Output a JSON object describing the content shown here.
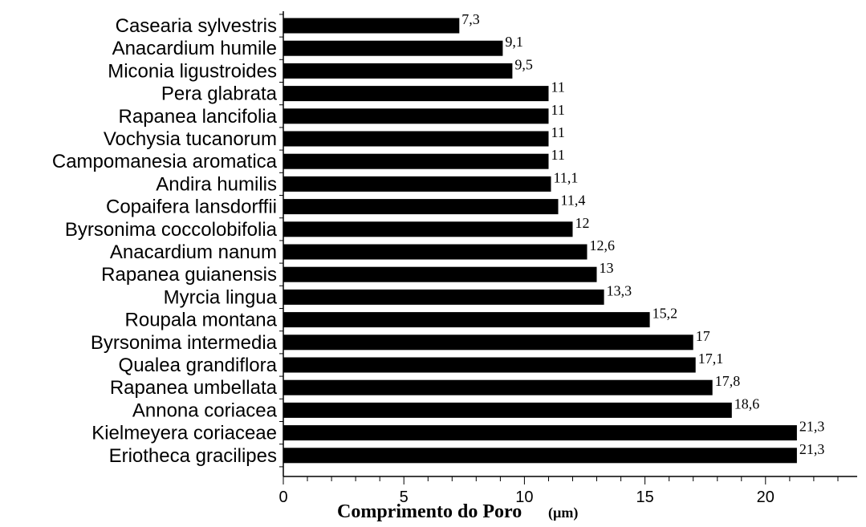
{
  "chart_data": {
    "type": "bar",
    "orientation": "horizontal",
    "categories": [
      "Casearia sylvestris",
      "Anacardium humile",
      "Miconia ligustroides",
      "Pera glabrata",
      "Rapanea lancifolia",
      "Vochysia tucanorum",
      "Campomanesia aromatica",
      "Andira humilis",
      "Copaifera lansdorffii",
      "Byrsonima coccolobifolia",
      "Anacardium nanum",
      "Rapanea guianensis",
      "Myrcia lingua",
      "Roupala montana",
      "Byrsonima intermedia",
      "Qualea grandiflora",
      "Rapanea umbellata",
      "Annona coriacea",
      "Kielmeyera coriaceae",
      "Eriotheca gracilipes"
    ],
    "values": [
      7.3,
      9.1,
      9.5,
      11,
      11,
      11,
      11,
      11.1,
      11.4,
      12,
      12.6,
      13,
      13.3,
      15.2,
      17,
      17.1,
      17.8,
      18.6,
      21.3,
      21.3
    ],
    "value_labels": [
      "7,3",
      "9,1",
      "9,5",
      "11",
      "11",
      "11",
      "11",
      "11,1",
      "11,4",
      "12",
      "12,6",
      "13",
      "13,3",
      "15,2",
      "17",
      "17,1",
      "17,8",
      "18,6",
      "21,3",
      "21,3"
    ],
    "xlabel": "Comprimento do Poro",
    "xlabel_unit": "(µm)",
    "xlim": [
      0,
      23.8
    ],
    "xticks": [
      0,
      5,
      10,
      15,
      20
    ],
    "xtick_labels": [
      "0",
      "5",
      "10",
      "15",
      "20"
    ],
    "minor_tick_step": 1,
    "grid": false,
    "bar_color": "#000000"
  }
}
